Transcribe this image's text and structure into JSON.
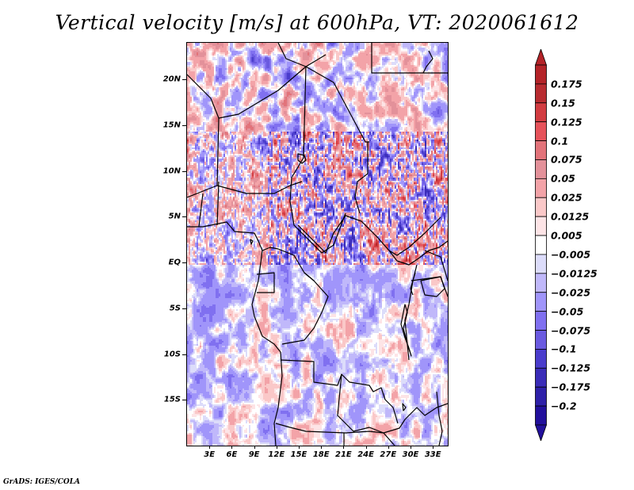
{
  "title": "Vertical velocity [m/s] at 600hPa, VT: 2020061612",
  "footer": "GrADS: IGES/COLA",
  "map": {
    "variable": "Vertical velocity",
    "units": "m/s",
    "level": "600hPa",
    "valid_time": "2020061612",
    "lon_range": [
      0,
      35
    ],
    "lat_range": [
      -20,
      24
    ],
    "y_axis_labels": [
      {
        "label": "20N",
        "lat": 20
      },
      {
        "label": "15N",
        "lat": 15
      },
      {
        "label": "10N",
        "lat": 10
      },
      {
        "label": "5N",
        "lat": 5
      },
      {
        "label": "EQ",
        "lat": 0
      },
      {
        "label": "5S",
        "lat": -5
      },
      {
        "label": "10S",
        "lat": -10
      },
      {
        "label": "15S",
        "lat": -15
      }
    ],
    "x_axis_labels": [
      {
        "label": "3E",
        "lon": 3
      },
      {
        "label": "6E",
        "lon": 6
      },
      {
        "label": "9E",
        "lon": 9
      },
      {
        "label": "12E",
        "lon": 12
      },
      {
        "label": "15E",
        "lon": 15
      },
      {
        "label": "18E",
        "lon": 18
      },
      {
        "label": "21E",
        "lon": 21
      },
      {
        "label": "24E",
        "lon": 24
      },
      {
        "label": "27E",
        "lon": 27
      },
      {
        "label": "30E",
        "lon": 30
      },
      {
        "label": "33E",
        "lon": 33
      }
    ]
  },
  "colorbar": {
    "labels_top_to_bottom": [
      "0.175",
      "0.15",
      "0.125",
      "0.1",
      "0.075",
      "0.05",
      "0.025",
      "0.0125",
      "0.005",
      "-0.005",
      "-0.0125",
      "-0.025",
      "-0.05",
      "-0.075",
      "-0.1",
      "-0.125",
      "-0.175",
      "-0.2"
    ],
    "colors_top_to_bottom": [
      "#b42328",
      "#b82b30",
      "#d23c41",
      "#e6525a",
      "#e2737a",
      "#e3919a",
      "#f3a3a8",
      "#fac8c8",
      "#fde4e6",
      "#ffffff",
      "#dcdcfa",
      "#c0b8fa",
      "#a095fa",
      "#8070f0",
      "#6a5ae0",
      "#4a3ccc",
      "#3a2cb8",
      "#2e20a8",
      "#22109c"
    ],
    "extend_top_color": "#b42328",
    "extend_bottom_color": "#22109c"
  }
}
